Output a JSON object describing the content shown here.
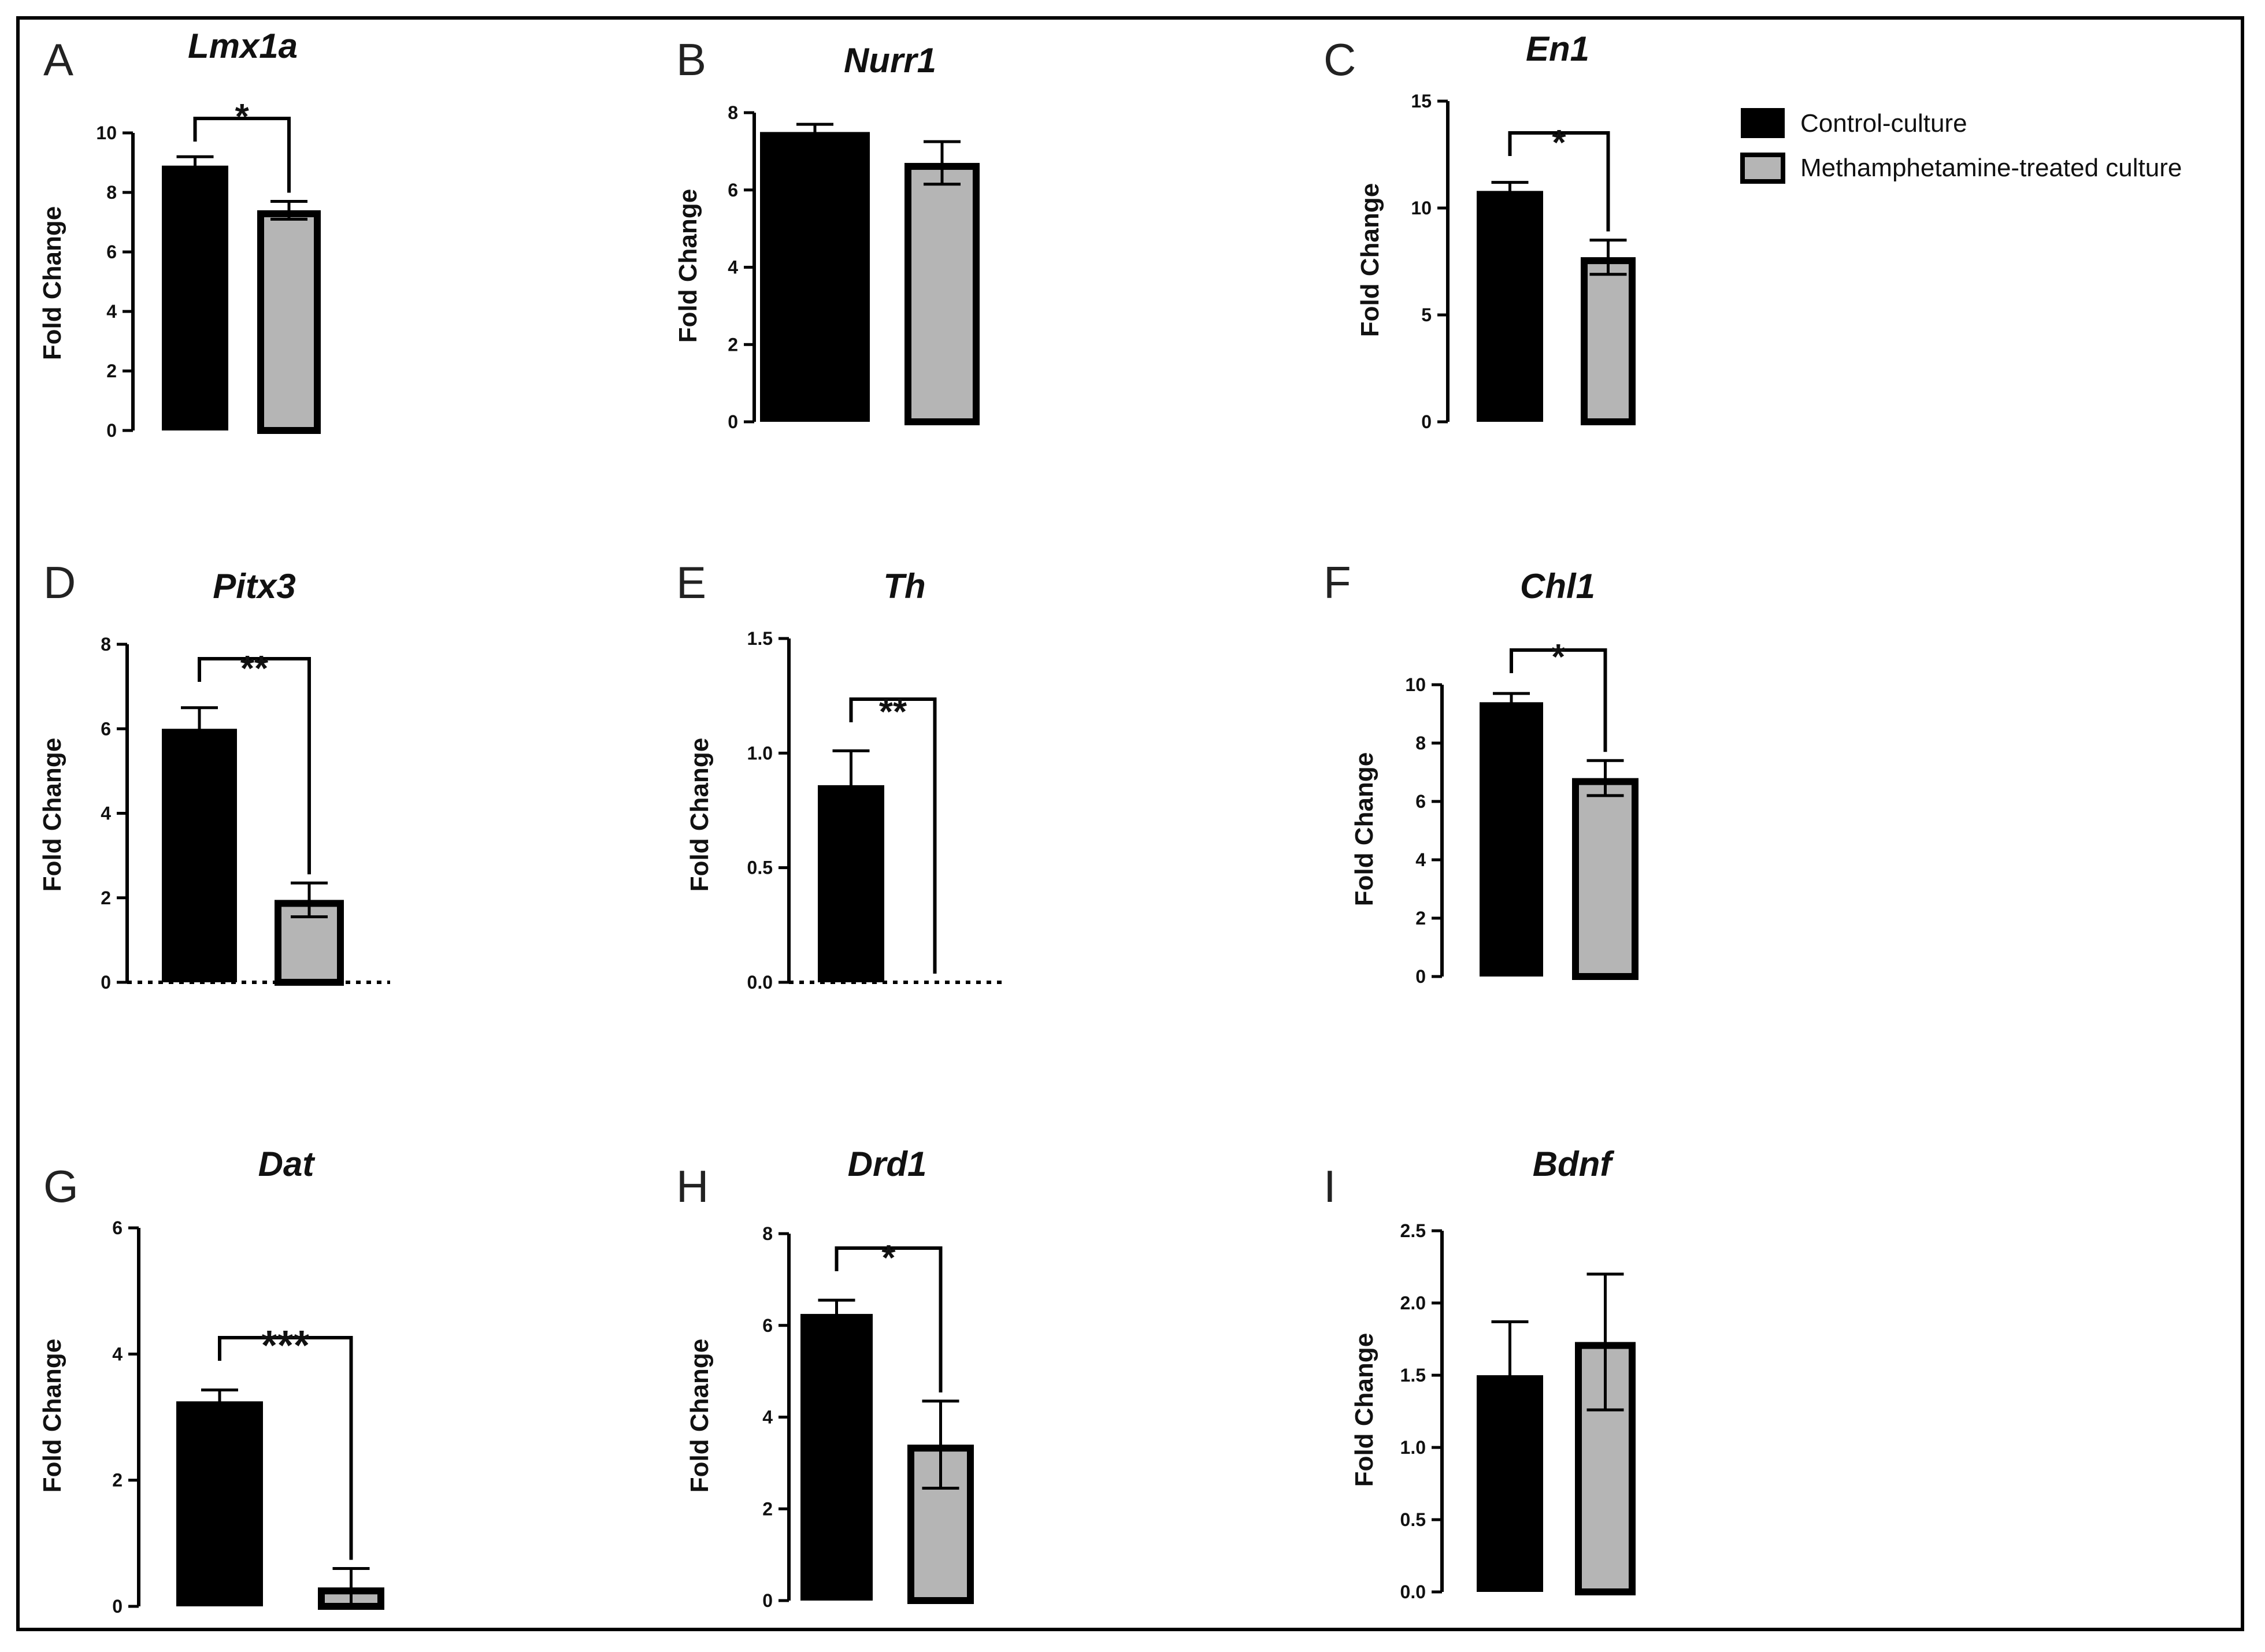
{
  "colors": {
    "control": "#000000",
    "treated": "#b5b5b5",
    "border": "#000000"
  },
  "legend": {
    "control_label": "Control-culture",
    "treated_label": "Methamphetamine-treated culture"
  },
  "chart_data": [
    {
      "type": "bar",
      "panel": "A",
      "title": "Lmx1a",
      "ylabel": "Fold Change",
      "ylim": [
        0,
        10
      ],
      "yticks": [
        "0",
        "2",
        "4",
        "6",
        "8",
        "10"
      ],
      "categories": [
        "Control-culture",
        "Methamphetamine-treated culture"
      ],
      "values": [
        8.9,
        7.4
      ],
      "errors": [
        0.3,
        0.3
      ],
      "significance": "*",
      "baseline_dotted": false
    },
    {
      "type": "bar",
      "panel": "B",
      "title": "Nurr1",
      "ylabel": "Fold Change",
      "ylim": [
        0,
        8
      ],
      "yticks": [
        "0",
        "2",
        "4",
        "6",
        "8"
      ],
      "categories": [
        "Control-culture",
        "Methamphetamine-treated culture"
      ],
      "values": [
        7.5,
        6.7
      ],
      "errors": [
        0.2,
        0.55
      ],
      "significance": "",
      "baseline_dotted": false
    },
    {
      "type": "bar",
      "panel": "C",
      "title": "En1",
      "ylabel": "Fold Change",
      "ylim": [
        0,
        15
      ],
      "yticks": [
        "0",
        "5",
        "10",
        "15"
      ],
      "categories": [
        "Control-culture",
        "Methamphetamine-treated culture"
      ],
      "values": [
        10.8,
        7.7
      ],
      "errors": [
        0.4,
        0.8
      ],
      "significance": "*",
      "baseline_dotted": false
    },
    {
      "type": "bar",
      "panel": "D",
      "title": "Pitx3",
      "ylabel": "Fold Change",
      "ylim": [
        0,
        8
      ],
      "yticks": [
        "0",
        "2",
        "4",
        "6",
        "8"
      ],
      "categories": [
        "Control-culture",
        "Methamphetamine-treated culture"
      ],
      "values": [
        6.0,
        1.95
      ],
      "errors": [
        0.5,
        0.4
      ],
      "significance": "**",
      "baseline_dotted": true
    },
    {
      "type": "bar",
      "panel": "E",
      "title": "Th",
      "ylabel": "Fold Change",
      "ylim": [
        0,
        1.5
      ],
      "yticks": [
        "0.0",
        "0.5",
        "1.0",
        "1.5"
      ],
      "categories": [
        "Control-culture",
        "Methamphetamine-treated culture"
      ],
      "values": [
        0.86,
        0.0
      ],
      "errors": [
        0.15,
        0.0
      ],
      "significance": "**",
      "baseline_dotted": true
    },
    {
      "type": "bar",
      "panel": "F",
      "title": "Chl1",
      "ylabel": "Fold Change",
      "ylim": [
        0,
        10
      ],
      "yticks": [
        "0",
        "2",
        "4",
        "6",
        "8",
        "10"
      ],
      "categories": [
        "Control-culture",
        "Methamphetamine-treated culture"
      ],
      "values": [
        9.4,
        6.8
      ],
      "errors": [
        0.3,
        0.6
      ],
      "significance": "*",
      "baseline_dotted": false
    },
    {
      "type": "bar",
      "panel": "G",
      "title": "Dat",
      "ylabel": "Fold Change",
      "ylim": [
        0,
        6
      ],
      "yticks": [
        "0",
        "2",
        "4",
        "6"
      ],
      "categories": [
        "Control-culture",
        "Methamphetamine-treated culture"
      ],
      "values": [
        3.25,
        0.3
      ],
      "errors": [
        0.18,
        0.3
      ],
      "significance": "***",
      "baseline_dotted": false
    },
    {
      "type": "bar",
      "panel": "H",
      "title": "Drd1",
      "ylabel": "Fold Change",
      "ylim": [
        0,
        8
      ],
      "yticks": [
        "0",
        "2",
        "4",
        "6",
        "8"
      ],
      "categories": [
        "Control-culture",
        "Methamphetamine-treated culture"
      ],
      "values": [
        6.25,
        3.4
      ],
      "errors": [
        0.3,
        0.95
      ],
      "significance": "*",
      "baseline_dotted": false
    },
    {
      "type": "bar",
      "panel": "I",
      "title": "Bdnf",
      "ylabel": "Fold Change",
      "ylim": [
        0,
        2.5
      ],
      "yticks": [
        "0.0",
        "0.5",
        "1.0",
        "1.5",
        "2.0",
        "2.5"
      ],
      "categories": [
        "Control-culture",
        "Methamphetamine-treated culture"
      ],
      "values": [
        1.5,
        1.73
      ],
      "errors": [
        0.37,
        0.47
      ],
      "significance": "",
      "baseline_dotted": false
    }
  ]
}
